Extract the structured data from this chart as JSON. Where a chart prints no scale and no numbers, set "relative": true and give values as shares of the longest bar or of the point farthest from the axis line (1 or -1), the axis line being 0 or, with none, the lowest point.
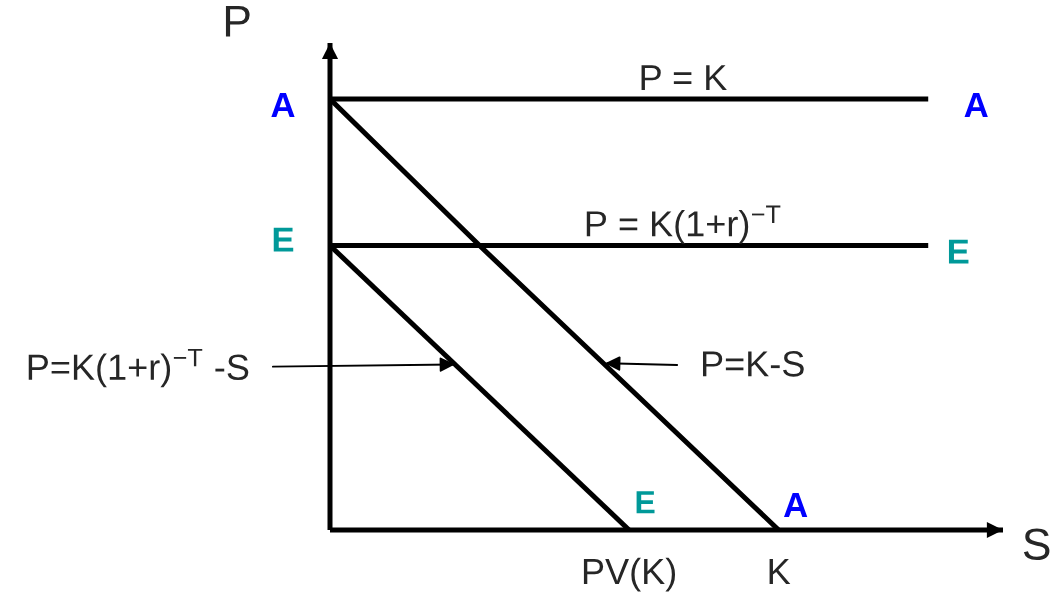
{
  "chart_data": {
    "type": "line",
    "relative": true,
    "xlabel": "S",
    "ylabel": "P",
    "categories": [
      null,
      null,
      "PV(K)",
      "K",
      null
    ],
    "series": [
      {
        "name": "P = K",
        "color": "#000000",
        "values": [
          1,
          1,
          1,
          1,
          1
        ]
      },
      {
        "name": "P = K(1+r)$^{−T}$",
        "color": "#000000",
        "values": [
          0.66,
          0.66,
          0.66,
          0.66,
          0.66
        ]
      },
      {
        "name": "P=K-S",
        "color": "#000000",
        "values": [
          1,
          0.66,
          0.33,
          0,
          null
        ]
      },
      {
        "name": "P=K(1+r)$^{−T}$ -S",
        "color": "#000000",
        "values": [
          0.66,
          0.33,
          0,
          null,
          null
        ]
      }
    ],
    "annotations": [
      "A",
      "A",
      "E",
      "E",
      {
        "text": "E",
        "x": "PV(K)",
        "y": 0
      },
      {
        "text": "A",
        "x": "K",
        "y": 0
      }
    ]
  }
}
